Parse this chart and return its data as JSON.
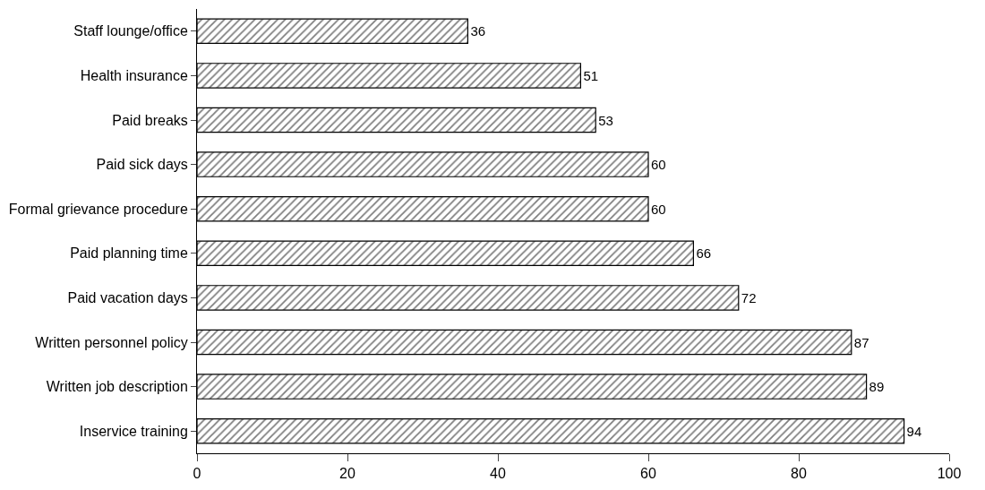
{
  "chart_data": {
    "type": "bar",
    "orientation": "horizontal",
    "categories": [
      "Staff lounge/office",
      "Health insurance",
      "Paid breaks",
      "Paid sick days",
      "Formal grievance procedure",
      "Paid planning time",
      "Paid vacation days",
      "Written personnel policy",
      "Written job description",
      "Inservice training"
    ],
    "values": [
      36,
      51,
      53,
      60,
      60,
      66,
      72,
      87,
      89,
      94
    ],
    "color": "#000000",
    "xlim": [
      0,
      100
    ],
    "xticks": [
      0,
      20,
      40,
      60,
      80,
      100
    ],
    "data_labels": true,
    "legend": false
  }
}
